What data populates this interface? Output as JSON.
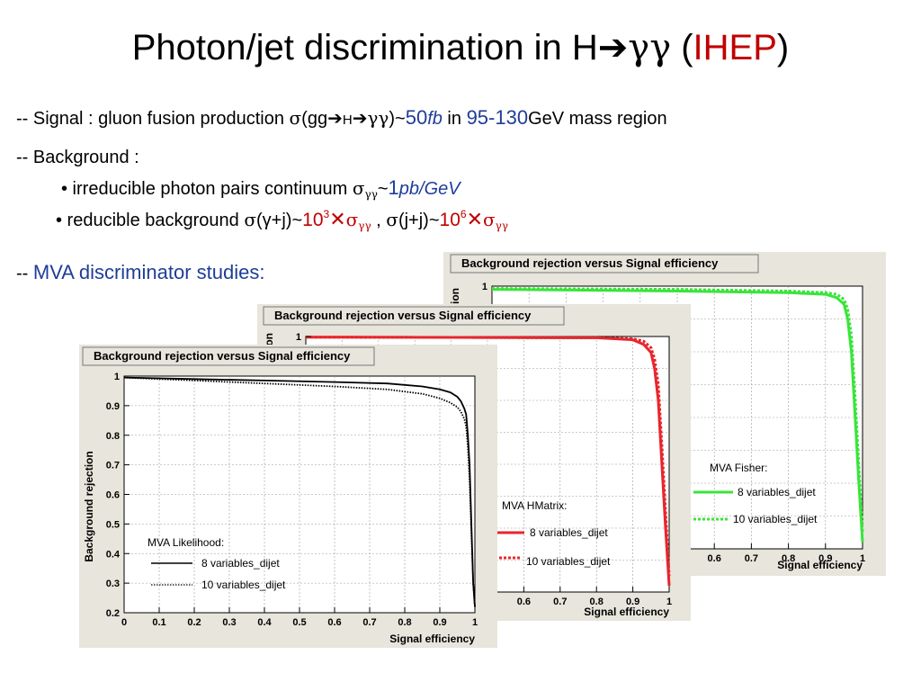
{
  "slide": {
    "title": {
      "pre": "Photon/jet discrimination in H",
      "arrow": "➔",
      "gg": "γγ",
      "open": " (",
      "inst": "IHEP",
      "close": ")"
    },
    "signal": {
      "p1": "-- Signal : gluon fusion production ",
      "sigma": "σ",
      "p2": "(gg",
      "arrow": "➔",
      "h": "H",
      "arrow2": "➔",
      "gg": "γγ",
      "p3": ")~",
      "val": "50",
      "unit": "fb",
      "p4": " in ",
      "range": "95-130",
      "p5": "GeV mass region"
    },
    "bkg": {
      "label": "-- Background :"
    },
    "irreducible": {
      "p1": "• irreducible photon pairs continuum ",
      "sigma": "σ",
      "sub": "γγ",
      "p2": "~",
      "val": "1",
      "unit": "pb/GeV"
    },
    "reducible": {
      "p1": "• reducible background ",
      "sigma1": "σ",
      "p2": "(γ+j)~",
      "v1": "10",
      "e1": "3",
      "x1": "✕",
      "s1": "σ",
      "sub1": "γγ",
      "comma": " , ",
      "sigma2": "σ",
      "p3": "(j+j)~",
      "v2": "10",
      "e2": "6",
      "x2": "✕",
      "s2": "σ",
      "sub2": "γγ"
    },
    "mva": {
      "dash": "-- ",
      "label": "MVA discriminator studies:"
    }
  },
  "colors": {
    "red": "#c00000",
    "blue": "#1f3d99",
    "panel_bg": "#e7e5dc",
    "likelihood": "#000000",
    "hmatrix": "#e8262d",
    "fisher": "#39e53a"
  },
  "chart_data": [
    {
      "type": "line",
      "title": "Background rejection versus Signal efficiency",
      "xlabel": "Signal efficiency",
      "ylabel": "Background rejection",
      "xlim": [
        0,
        1
      ],
      "ylim": [
        0.2,
        1
      ],
      "xticks": [
        "0",
        "0.1",
        "0.2",
        "0.3",
        "0.4",
        "0.5",
        "0.6",
        "0.7",
        "0.8",
        "0.9",
        "1"
      ],
      "yticks": [
        "0.2",
        "0.3",
        "0.4",
        "0.5",
        "0.6",
        "0.7",
        "0.8",
        "0.9",
        "1"
      ],
      "grid": true,
      "legend_title": "MVA Likelihood:",
      "series": [
        {
          "name": "8 variables_dijet",
          "style": "solid",
          "color": "#000000",
          "x": [
            0,
            0.2,
            0.4,
            0.6,
            0.75,
            0.85,
            0.9,
            0.93,
            0.95,
            0.96,
            0.97,
            0.975,
            0.98,
            0.985,
            0.99,
            0.995,
            1.0
          ],
          "y": [
            0.995,
            0.99,
            0.985,
            0.98,
            0.975,
            0.965,
            0.955,
            0.945,
            0.93,
            0.915,
            0.89,
            0.87,
            0.8,
            0.7,
            0.5,
            0.3,
            0.22
          ]
        },
        {
          "name": "10 variables_dijet",
          "style": "dotted",
          "color": "#000000",
          "x": [
            0,
            0.2,
            0.4,
            0.6,
            0.75,
            0.85,
            0.9,
            0.93,
            0.95,
            0.96,
            0.97,
            0.975,
            0.98,
            0.985,
            0.99,
            0.995,
            1.0
          ],
          "y": [
            0.995,
            0.985,
            0.975,
            0.965,
            0.955,
            0.94,
            0.925,
            0.91,
            0.895,
            0.88,
            0.855,
            0.83,
            0.76,
            0.65,
            0.47,
            0.3,
            0.22
          ]
        }
      ]
    },
    {
      "type": "line",
      "title": "Background rejection versus Signal efficiency",
      "xlabel": "Signal efficiency",
      "ylabel": "",
      "xlim": [
        0,
        1
      ],
      "ylim": [
        0.2,
        1
      ],
      "xticks": [
        "0.6",
        "0.7",
        "0.8",
        "0.9",
        "1"
      ],
      "yticks": [
        "1"
      ],
      "grid": true,
      "legend_title": "MVA HMatrix:",
      "series": [
        {
          "name": "8 variables_dijet",
          "style": "solid",
          "color": "#e8262d",
          "x": [
            0,
            0.5,
            0.8,
            0.9,
            0.93,
            0.95,
            0.96,
            0.97,
            0.98,
            0.99,
            1.0
          ],
          "y": [
            0.998,
            0.997,
            0.996,
            0.99,
            0.975,
            0.95,
            0.9,
            0.8,
            0.6,
            0.4,
            0.22
          ]
        },
        {
          "name": "10 variables_dijet",
          "style": "dotted",
          "color": "#e8262d",
          "x": [
            0,
            0.5,
            0.8,
            0.9,
            0.93,
            0.95,
            0.96,
            0.97,
            0.98,
            0.99,
            1.0
          ],
          "y": [
            0.998,
            0.997,
            0.996,
            0.993,
            0.985,
            0.965,
            0.93,
            0.85,
            0.66,
            0.45,
            0.25
          ]
        }
      ]
    },
    {
      "type": "line",
      "title": "Background rejection versus Signal efficiency",
      "xlabel": "Signal efficiency",
      "ylabel": "",
      "xlim": [
        0,
        1
      ],
      "ylim": [
        0.2,
        1
      ],
      "xticks": [
        "0.6",
        "0.7",
        "0.8",
        "0.9",
        "1"
      ],
      "yticks": [
        "1"
      ],
      "grid": true,
      "legend_title": "MVA Fisher:",
      "series": [
        {
          "name": "8 variables_dijet",
          "style": "solid",
          "color": "#39e53a",
          "x": [
            0,
            0.5,
            0.8,
            0.9,
            0.93,
            0.95,
            0.96,
            0.97,
            0.98,
            0.99,
            1.0
          ],
          "y": [
            0.99,
            0.985,
            0.98,
            0.975,
            0.965,
            0.945,
            0.9,
            0.8,
            0.6,
            0.4,
            0.22
          ]
        },
        {
          "name": "10 variables_dijet",
          "style": "dotted",
          "color": "#39e53a",
          "x": [
            0,
            0.5,
            0.8,
            0.9,
            0.93,
            0.95,
            0.96,
            0.97,
            0.98,
            0.99,
            1.0
          ],
          "y": [
            0.993,
            0.99,
            0.985,
            0.98,
            0.975,
            0.96,
            0.93,
            0.85,
            0.66,
            0.45,
            0.25
          ]
        }
      ]
    }
  ]
}
